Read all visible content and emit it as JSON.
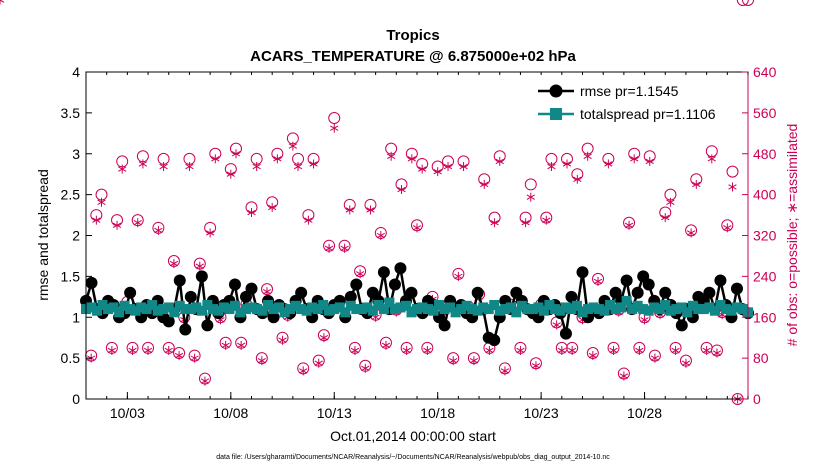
{
  "chart_data": {
    "type": "line",
    "title": "Tropics",
    "subtitle": "ACARS_TEMPERATURE @ 6.875000e+02 hPa",
    "xlabel": "Oct.01,2014 00:00:00 start",
    "ylabel": "rmse and totalspread",
    "y2label": "# of obs: o=possible; ∗=assimilated",
    "xlim": [
      1,
      33
    ],
    "ylim": [
      0,
      4
    ],
    "y2lim": [
      0,
      640
    ],
    "x_ticks": [
      {
        "pos": 3,
        "label": "10/03"
      },
      {
        "pos": 8,
        "label": "10/08"
      },
      {
        "pos": 13,
        "label": "10/13"
      },
      {
        "pos": 18,
        "label": "10/18"
      },
      {
        "pos": 23,
        "label": "10/23"
      },
      {
        "pos": 28,
        "label": "10/28"
      }
    ],
    "y_ticks": [
      "0",
      "0.5",
      "1",
      "1.5",
      "2",
      "2.5",
      "3",
      "3.5",
      "4"
    ],
    "y2_ticks": [
      "0",
      "80",
      "160",
      "240",
      "320",
      "400",
      "480",
      "560",
      "640"
    ],
    "legend_position": "top-right",
    "series": [
      {
        "name": "rmse pr=1.1545",
        "axis": "left",
        "color": "#000000",
        "values": [
          1.2,
          1.42,
          1.1,
          1.05,
          1.2,
          1.15,
          1.0,
          1.05,
          1.3,
          1.1,
          1.0,
          1.15,
          1.05,
          1.2,
          1.0,
          0.95,
          1.1,
          1.45,
          0.85,
          1.25,
          1.1,
          1.5,
          0.9,
          1.2,
          1.05,
          1.15,
          1.2,
          1.4,
          1.0,
          1.25,
          1.35,
          1.1,
          1.05,
          1.2,
          1.0,
          1.15,
          1.1,
          1.05,
          1.2,
          1.3,
          1.1,
          1.0,
          1.2,
          1.1,
          1.05,
          1.15,
          1.2,
          1.0,
          1.25,
          1.4,
          1.1,
          1.05,
          1.3,
          1.2,
          1.55,
          1.1,
          1.4,
          1.6,
          1.2,
          1.3,
          1.1,
          1.05,
          1.2,
          1.15,
          1.0,
          0.9,
          1.2,
          1.1,
          1.15,
          1.05,
          1.0,
          1.3,
          1.1,
          0.75,
          0.72,
          1.0,
          1.2,
          1.1,
          1.3,
          1.2,
          1.1,
          1.05,
          1.0,
          1.2,
          1.1,
          1.15,
          1.05,
          0.8,
          1.25,
          1.1,
          1.55,
          1.0,
          1.1,
          1.05,
          1.2,
          1.1,
          1.3,
          1.2,
          1.45,
          1.1,
          1.3,
          1.5,
          1.4,
          1.2,
          1.1,
          1.3,
          1.15,
          1.05,
          0.9,
          1.1,
          1.0,
          1.25,
          1.2,
          1.3,
          1.1,
          1.45,
          1.15,
          1.0,
          1.35,
          1.1,
          1.05
        ]
      },
      {
        "name": "totalspread pr=1.1106",
        "axis": "left",
        "color": "#118888",
        "values": [
          1.1,
          1.12,
          1.08,
          1.15,
          1.1,
          1.12,
          1.06,
          1.14,
          1.1,
          1.08,
          1.12,
          1.1,
          1.15,
          1.08,
          1.1,
          1.12,
          1.06,
          1.14,
          1.1,
          1.1,
          1.12,
          1.08,
          1.15,
          1.1,
          1.08,
          1.12,
          1.1,
          1.14,
          1.06,
          1.1,
          1.12,
          1.1,
          1.08,
          1.15,
          1.1,
          1.12,
          1.06,
          1.1,
          1.14,
          1.1,
          1.08,
          1.12,
          1.1,
          1.15,
          1.08,
          1.1,
          1.12,
          1.06,
          1.14,
          1.1,
          1.1,
          1.12,
          1.08,
          1.15,
          1.1,
          1.18,
          1.1,
          1.12,
          1.14,
          1.06,
          1.1,
          1.12,
          1.1,
          1.08,
          1.15,
          1.1,
          1.12,
          1.06,
          1.1,
          1.14,
          1.1,
          1.08,
          1.12,
          1.1,
          1.15,
          1.08,
          1.1,
          1.12,
          1.06,
          1.14,
          1.1,
          1.1,
          1.12,
          1.08,
          1.15,
          1.1,
          1.08,
          1.12,
          1.1,
          1.14,
          1.06,
          1.1,
          1.12,
          1.1,
          1.08,
          1.15,
          1.1,
          1.12,
          1.2,
          1.1,
          1.14,
          1.1,
          1.08,
          1.12,
          1.1,
          1.15,
          1.08,
          1.1,
          1.12,
          1.06,
          1.14,
          1.1,
          1.1,
          1.12,
          1.08,
          1.15,
          1.1,
          1.08,
          1.12,
          1.1,
          1.06
        ]
      }
    ],
    "obs_counts": {
      "axis": "right",
      "color": "#cc0055",
      "x": [
        1.25,
        1.5,
        1.75,
        2.0,
        2.25,
        2.5,
        2.75,
        3.0,
        3.25,
        3.5,
        3.75,
        4.0,
        4.25,
        4.5,
        4.75,
        5.0,
        5.25,
        5.5,
        5.75,
        6.0,
        6.25,
        6.5,
        6.75,
        7.0,
        7.25,
        7.5,
        7.75,
        8.0,
        8.25,
        8.5,
        8.75,
        9.0,
        9.25,
        9.5,
        9.75,
        10.0,
        10.25,
        10.5,
        10.75,
        11.0,
        11.25,
        11.5,
        11.75,
        12.0,
        12.25,
        12.5,
        12.75,
        13.0,
        13.25,
        13.5,
        13.75,
        14.0,
        14.25,
        14.5,
        14.75,
        15.0,
        15.25,
        15.5,
        15.75,
        16.0,
        16.25,
        16.5,
        16.75,
        17.0,
        17.25,
        17.5,
        17.75,
        18.0,
        18.25,
        18.5,
        18.75,
        19.0,
        19.25,
        19.5,
        19.75,
        20.0,
        20.25,
        20.5,
        20.75,
        21.0,
        21.25,
        21.5,
        21.75,
        22.0,
        22.25,
        22.5,
        22.75,
        23.0,
        23.25,
        23.5,
        23.75,
        24.0,
        24.25,
        24.5,
        24.75,
        25.0,
        25.25,
        25.5,
        25.75,
        26.0,
        26.25,
        26.5,
        26.75,
        27.0,
        27.25,
        27.5,
        27.75,
        28.0,
        28.25,
        28.5,
        28.75,
        29.0,
        29.25,
        29.5,
        29.75,
        30.0,
        30.25,
        30.5,
        30.75,
        31.0,
        31.25,
        31.5,
        31.75,
        32.0,
        32.25,
        32.5,
        32.75,
        33.0
      ],
      "possible": [
        85,
        360,
        400,
        185,
        100,
        350,
        465,
        190,
        100,
        350,
        475,
        100,
        175,
        335,
        470,
        100,
        270,
        90,
        160,
        470,
        85,
        265,
        40,
        335,
        480,
        160,
        110,
        450,
        490,
        110,
        185,
        375,
        470,
        80,
        215,
        385,
        480,
        120,
        165,
        510,
        470,
        60,
        360,
        470,
        75,
        125,
        300,
        550,
        190,
        300,
        380,
        100,
        250,
        65,
        380,
        165,
        325,
        110,
        490,
        175,
        420,
        100,
        480,
        340,
        460,
        100,
        200,
        455,
        175,
        465,
        80,
        245,
        465,
        180,
        80,
        205,
        430,
        100,
        355,
        475,
        60,
        185,
        180,
        100,
        355,
        420,
        70,
        185,
        355,
        470,
        150,
        100,
        470,
        100,
        440,
        160,
        490,
        90,
        235,
        175,
        470,
        100,
        175,
        50,
        345,
        480,
        100,
        160,
        475,
        85,
        170,
        365,
        400,
        100,
        175,
        75,
        330,
        430,
        195,
        100,
        485,
        95,
        170,
        340,
        445,
        0
      ],
      "assimilated": [
        80,
        350,
        385,
        180,
        95,
        340,
        450,
        180,
        95,
        345,
        460,
        95,
        170,
        330,
        455,
        95,
        265,
        85,
        155,
        455,
        80,
        260,
        35,
        325,
        470,
        155,
        105,
        440,
        480,
        105,
        180,
        365,
        455,
        75,
        210,
        375,
        470,
        115,
        160,
        495,
        455,
        55,
        350,
        460,
        70,
        120,
        295,
        530,
        185,
        295,
        370,
        95,
        245,
        60,
        370,
        160,
        320,
        105,
        475,
        170,
        410,
        95,
        470,
        335,
        450,
        95,
        195,
        445,
        170,
        455,
        75,
        240,
        455,
        175,
        75,
        200,
        420,
        95,
        345,
        465,
        55,
        180,
        175,
        95,
        345,
        395,
        65,
        180,
        350,
        455,
        145,
        95,
        460,
        95,
        430,
        155,
        475,
        85,
        230,
        170,
        460,
        95,
        170,
        45,
        340,
        470,
        95,
        155,
        465,
        80,
        165,
        355,
        385,
        95,
        170,
        70,
        325,
        420,
        190,
        95,
        470,
        90,
        165,
        335,
        415,
        0
      ]
    },
    "footnote": "data file: /Users/gharamti/Documents/NCAR/Reanalysis/~/Documents/NCAR/Reanalysis/webpub/obs_diag_output_2014-10.nc"
  }
}
